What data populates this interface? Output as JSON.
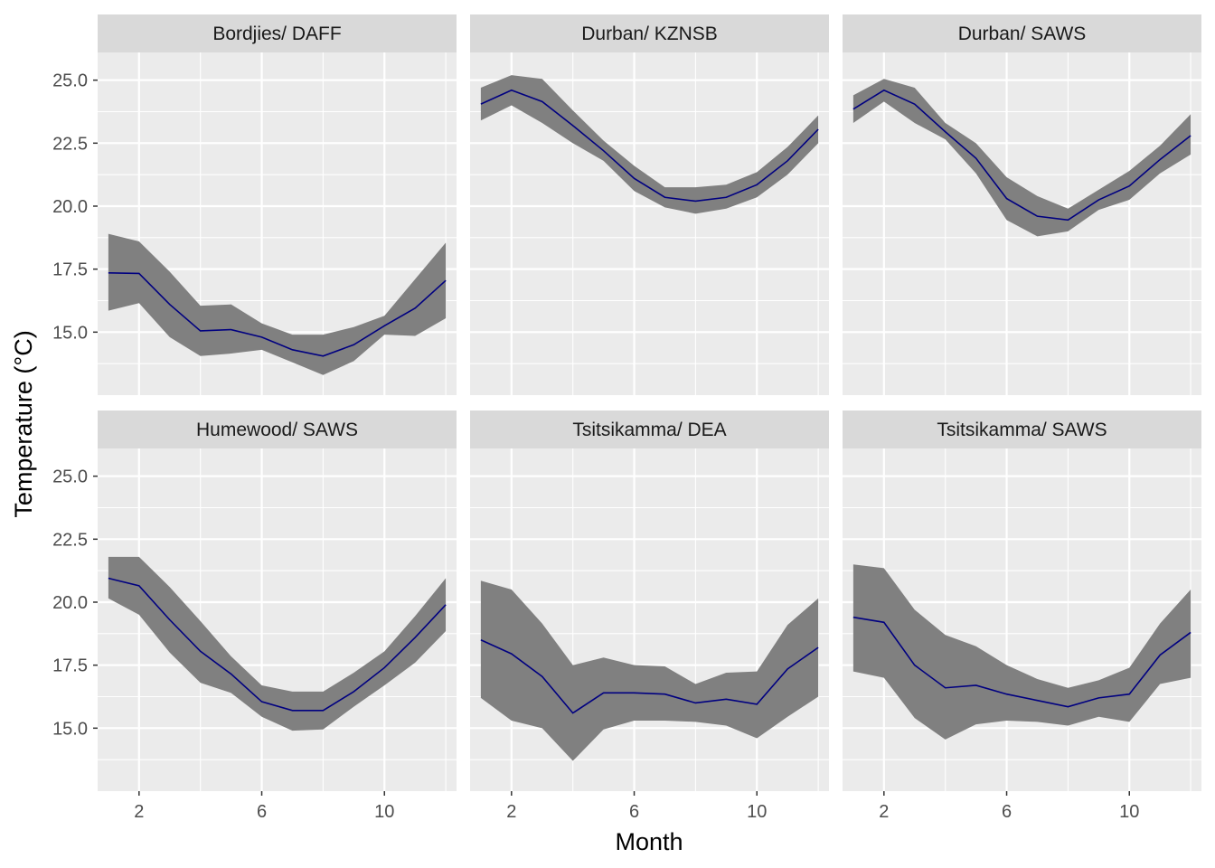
{
  "chart_data": {
    "type": "line",
    "layout": "facet-grid-2x3",
    "xlabel": "Month",
    "ylabel": "Temperature (°C)",
    "x_ticks": [
      2,
      6,
      10
    ],
    "x_tick_labels": [
      "2",
      "6",
      "10"
    ],
    "y_ticks": [
      15.0,
      17.5,
      20.0,
      22.5,
      25.0
    ],
    "y_tick_labels": [
      "15.0",
      "17.5",
      "20.0",
      "22.5",
      "25.0"
    ],
    "xlim": [
      0.65,
      12.35
    ],
    "ylim": [
      12.5,
      26.1
    ],
    "grid": true,
    "colors": {
      "line": "#000080",
      "ribbon": "#808080",
      "panel_bg": "#EBEBEB",
      "strip_bg": "#D9D9D9",
      "grid": "#FFFFFF"
    },
    "x": [
      1,
      2,
      3,
      4,
      5,
      6,
      7,
      8,
      9,
      10,
      11,
      12
    ],
    "facets": [
      {
        "name": "Bordjies/ DAFF",
        "mean": [
          17.35,
          17.33,
          16.1,
          15.05,
          15.1,
          14.8,
          14.3,
          14.05,
          14.5,
          15.25,
          15.95,
          17.05
        ],
        "lower": [
          15.85,
          16.15,
          14.8,
          14.05,
          14.15,
          14.3,
          13.8,
          13.3,
          13.85,
          14.9,
          14.85,
          15.55
        ],
        "upper": [
          18.9,
          18.6,
          17.4,
          16.05,
          16.1,
          15.35,
          14.9,
          14.9,
          15.2,
          15.65,
          17.1,
          18.55
        ]
      },
      {
        "name": "Durban/ KZNSB",
        "mean": [
          24.05,
          24.6,
          24.15,
          23.2,
          22.2,
          21.1,
          20.35,
          20.2,
          20.35,
          20.85,
          21.8,
          23.05
        ],
        "lower": [
          23.4,
          24.0,
          23.3,
          22.5,
          21.8,
          20.6,
          19.95,
          19.7,
          19.9,
          20.35,
          21.25,
          22.5
        ],
        "upper": [
          24.7,
          25.2,
          25.05,
          23.8,
          22.6,
          21.6,
          20.75,
          20.75,
          20.85,
          21.35,
          22.35,
          23.6
        ]
      },
      {
        "name": "Durban/ SAWS",
        "mean": [
          23.85,
          24.6,
          24.05,
          22.95,
          21.9,
          20.3,
          19.6,
          19.45,
          20.25,
          20.8,
          21.85,
          22.8
        ],
        "lower": [
          23.3,
          24.15,
          23.3,
          22.65,
          21.3,
          19.45,
          18.8,
          19.0,
          19.85,
          20.25,
          21.3,
          22.05
        ],
        "upper": [
          24.4,
          25.05,
          24.7,
          23.3,
          22.5,
          21.15,
          20.4,
          19.9,
          20.65,
          21.4,
          22.4,
          23.65
        ]
      },
      {
        "name": "Humewood/ SAWS",
        "mean": [
          20.95,
          20.65,
          19.3,
          18.05,
          17.15,
          16.05,
          15.7,
          15.7,
          16.45,
          17.4,
          18.6,
          19.9
        ],
        "lower": [
          20.15,
          19.5,
          18.0,
          16.8,
          16.4,
          15.45,
          14.9,
          14.95,
          15.85,
          16.7,
          17.6,
          18.85
        ],
        "upper": [
          21.8,
          21.8,
          20.6,
          19.25,
          17.85,
          16.7,
          16.45,
          16.45,
          17.2,
          18.05,
          19.45,
          20.95
        ]
      },
      {
        "name": "Tsitsikamma/ DEA",
        "mean": [
          18.5,
          17.95,
          17.05,
          15.6,
          16.4,
          16.4,
          16.35,
          16.0,
          16.15,
          15.95,
          17.35,
          18.2
        ],
        "lower": [
          16.2,
          15.3,
          15.0,
          13.7,
          14.95,
          15.3,
          15.3,
          15.25,
          15.1,
          14.6,
          15.45,
          16.25
        ],
        "upper": [
          20.85,
          20.5,
          19.15,
          17.5,
          17.8,
          17.5,
          17.45,
          16.75,
          17.2,
          17.25,
          19.1,
          20.15
        ]
      },
      {
        "name": "Tsitsikamma/ SAWS",
        "mean": [
          19.4,
          19.2,
          17.5,
          16.6,
          16.7,
          16.35,
          16.1,
          15.85,
          16.2,
          16.35,
          17.9,
          18.8
        ],
        "lower": [
          17.25,
          17.0,
          15.4,
          14.55,
          15.15,
          15.3,
          15.25,
          15.1,
          15.45,
          15.25,
          16.75,
          17.0
        ],
        "upper": [
          21.5,
          21.35,
          19.7,
          18.7,
          18.25,
          17.5,
          16.95,
          16.6,
          16.9,
          17.4,
          19.15,
          20.5
        ]
      }
    ]
  }
}
